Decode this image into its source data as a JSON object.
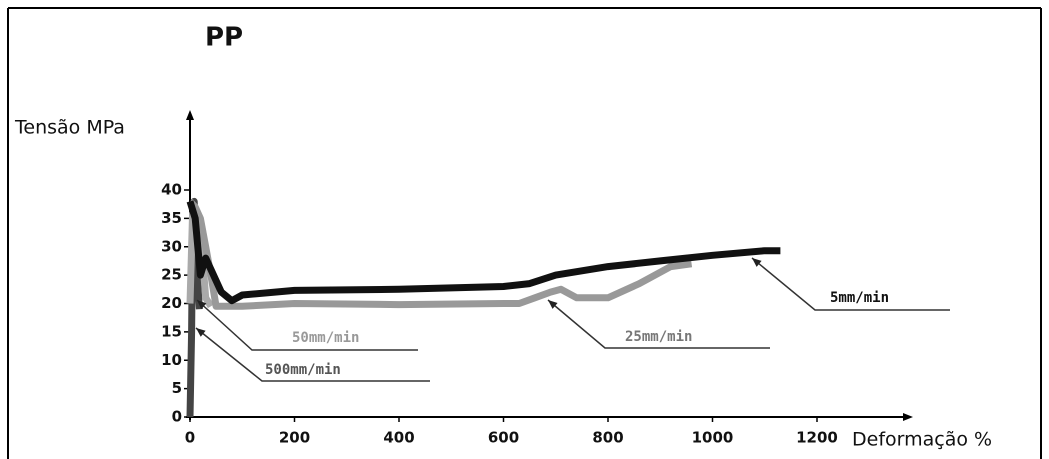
{
  "chart_data": {
    "type": "line",
    "title": "PP",
    "y_label": "Tensão MPa",
    "x_label": "Deformação %",
    "xlim": [
      0,
      1200
    ],
    "ylim": [
      0,
      40
    ],
    "xticks": [
      0,
      200,
      400,
      600,
      800,
      1000,
      1200
    ],
    "yticks": [
      0,
      5,
      10,
      15,
      20,
      25,
      30,
      35,
      40
    ],
    "series": [
      {
        "name": "5mm/min",
        "color": "#111111",
        "x": [
          0,
          10,
          20,
          30,
          40,
          60,
          80,
          100,
          200,
          400,
          600,
          650,
          700,
          800,
          900,
          1000,
          1100,
          1130
        ],
        "values": [
          38,
          35,
          25,
          28,
          26,
          22,
          20.5,
          21.5,
          22.3,
          22.5,
          23,
          23.5,
          25,
          26.5,
          27.5,
          28.5,
          29.3,
          29.3
        ]
      },
      {
        "name": "25mm/min",
        "color": "#999999",
        "x": [
          0,
          10,
          20,
          30,
          40,
          50,
          100,
          200,
          400,
          600,
          630,
          660,
          690,
          710,
          740,
          800,
          860,
          920,
          960
        ],
        "values": [
          38,
          37,
          35,
          30,
          25,
          19.5,
          19.5,
          20,
          19.8,
          20,
          20,
          21,
          22,
          22.5,
          21,
          21,
          23.5,
          26.5,
          27
        ]
      },
      {
        "name": "50mm/min",
        "color": "#aaaaaa",
        "x": [
          0,
          5,
          10,
          20,
          30,
          40
        ],
        "values": [
          20,
          36,
          30,
          33,
          21,
          19.5
        ]
      },
      {
        "name": "500mm/min",
        "color": "#444444",
        "x": [
          0,
          3,
          5,
          8,
          12,
          18
        ],
        "values": [
          0,
          15,
          33,
          38,
          28,
          19
        ]
      }
    ]
  }
}
